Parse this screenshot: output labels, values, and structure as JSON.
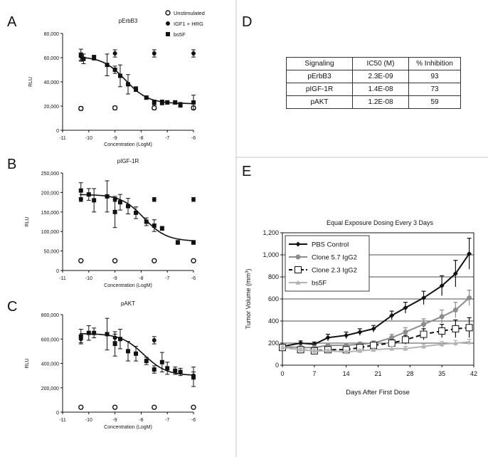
{
  "panel_labels": {
    "a": "A",
    "b": "B",
    "c": "C",
    "d": "D",
    "e": "E"
  },
  "table": {
    "headers": [
      "Signaling",
      "IC50  (M)",
      "% Inhibition"
    ],
    "rows": [
      [
        "pErbB3",
        "2.3E-09",
        "93"
      ],
      [
        "pIGF-1R",
        "1.4E-08",
        "73"
      ],
      [
        "pAKT",
        "1.2E-08",
        "59"
      ]
    ]
  },
  "chart_data": [
    {
      "id": "A",
      "type": "scatter",
      "title": "pErbB3",
      "xlabel": "Concentration (LogM)",
      "ylabel": "RLU",
      "xlim": [
        -11,
        -6
      ],
      "ylim": [
        0,
        80000
      ],
      "xticks": [
        -11,
        -10,
        -9,
        -8,
        -7,
        -6
      ],
      "yticks": [
        0,
        20000,
        40000,
        60000,
        80000
      ],
      "ytick_labels": [
        "0",
        "20,000",
        "40,000",
        "60,000",
        "80,000"
      ],
      "legend": [
        "Unstimulated",
        "IGF1 + HRG",
        "bs5F"
      ],
      "fit": {
        "top": 61000,
        "bottom": 22000,
        "logIC50": -8.6,
        "hill": 1.0
      },
      "series": [
        {
          "name": "Unstimulated",
          "marker": "open-circle",
          "x": [
            -10.3,
            -9,
            -7.5,
            -6
          ],
          "y": [
            18000,
            18500,
            18500,
            18500
          ],
          "err": [
            1500,
            1500,
            1500,
            1500
          ]
        },
        {
          "name": "IGF1 + HRG",
          "marker": "filled-circle",
          "x": [
            -10.3,
            -9,
            -7.5,
            -6
          ],
          "y": [
            61000,
            63500,
            63500,
            63500
          ],
          "err": [
            3000,
            3000,
            3000,
            3000
          ]
        },
        {
          "name": "bs5F",
          "marker": "filled-square",
          "x": [
            -10.3,
            -10.2,
            -9.8,
            -9.3,
            -9.0,
            -8.8,
            -8.5,
            -8.2,
            -7.8,
            -7.5,
            -7.2,
            -7.0,
            -6.7,
            -6.5,
            -6.0
          ],
          "y": [
            62000,
            59000,
            60000,
            54000,
            50000,
            45000,
            38000,
            34000,
            27000,
            23000,
            23000,
            23000,
            23000,
            21000,
            23000
          ],
          "err": [
            5000,
            4000,
            2000,
            9000,
            3000,
            9000,
            8000,
            2000,
            1500,
            2000,
            2000,
            1500,
            1500,
            2000,
            6000
          ]
        }
      ]
    },
    {
      "id": "B",
      "type": "scatter",
      "title": "pIGF-1R",
      "xlabel": "Concentration (LogM)",
      "ylabel": "RLU",
      "xlim": [
        -11,
        -6
      ],
      "ylim": [
        0,
        250000
      ],
      "xticks": [
        -11,
        -10,
        -9,
        -8,
        -7,
        -6
      ],
      "yticks": [
        0,
        50000,
        100000,
        150000,
        200000,
        250000
      ],
      "ytick_labels": [
        "0",
        "50,000",
        "100,000",
        "150,000",
        "200,000",
        "250,000"
      ],
      "fit": {
        "top": 195000,
        "bottom": 75000,
        "logIC50": -7.9,
        "hill": 1.0
      },
      "series": [
        {
          "name": "Unstimulated",
          "marker": "open-circle",
          "x": [
            -10.3,
            -9,
            -7.5,
            -6
          ],
          "y": [
            25000,
            25000,
            25000,
            25000
          ],
          "err": [
            0,
            0,
            0,
            0
          ]
        },
        {
          "name": "IGF1 + HRG",
          "marker": "filled-circle",
          "x": [
            -10.3,
            -9,
            -7.5,
            -6
          ],
          "y": [
            182000,
            182000,
            182000,
            182000
          ],
          "err": [
            5000,
            5000,
            5000,
            5000
          ]
        },
        {
          "name": "bs5F",
          "marker": "filled-square",
          "x": [
            -10.3,
            -10.0,
            -9.8,
            -9.3,
            -9.0,
            -8.8,
            -8.5,
            -8.2,
            -7.8,
            -7.5,
            -7.2,
            -6.6,
            -6.0
          ],
          "y": [
            205000,
            195000,
            180000,
            190000,
            150000,
            175000,
            165000,
            148000,
            125000,
            115000,
            108000,
            72000,
            72000
          ],
          "err": [
            20000,
            15000,
            30000,
            40000,
            40000,
            20000,
            20000,
            15000,
            10000,
            15000,
            5000,
            5000,
            5000
          ]
        }
      ]
    },
    {
      "id": "C",
      "type": "scatter",
      "title": "pAKT",
      "xlabel": "Concentration (LogM)",
      "ylabel": "RLU",
      "xlim": [
        -11,
        -6
      ],
      "ylim": [
        0,
        800000
      ],
      "xticks": [
        -11,
        -10,
        -9,
        -8,
        -7,
        -6
      ],
      "yticks": [
        0,
        200000,
        400000,
        600000,
        800000
      ],
      "ytick_labels": [
        "0",
        "200,000",
        "400,000",
        "600,000",
        "800,000"
      ],
      "fit": {
        "top": 645000,
        "bottom": 300000,
        "logIC50": -7.9,
        "hill": 1.0
      },
      "series": [
        {
          "name": "Unstimulated",
          "marker": "open-circle",
          "x": [
            -10.3,
            -9,
            -7.5,
            -6
          ],
          "y": [
            40000,
            40000,
            40000,
            40000
          ],
          "err": [
            0,
            0,
            0,
            0
          ]
        },
        {
          "name": "IGF1 + HRG",
          "marker": "filled-circle",
          "x": [
            -10.3,
            -9,
            -7.5,
            -6
          ],
          "y": [
            600000,
            610000,
            590000,
            300000
          ],
          "err": [
            30000,
            30000,
            30000,
            30000
          ]
        },
        {
          "name": "bs5F",
          "marker": "filled-square",
          "x": [
            -10.3,
            -10.0,
            -9.8,
            -9.3,
            -9.0,
            -8.8,
            -8.5,
            -8.2,
            -7.8,
            -7.5,
            -7.2,
            -7.0,
            -6.7,
            -6.5,
            -6.0
          ],
          "y": [
            620000,
            650000,
            650000,
            640000,
            560000,
            600000,
            500000,
            480000,
            420000,
            350000,
            410000,
            360000,
            340000,
            330000,
            290000
          ],
          "err": [
            60000,
            60000,
            40000,
            130000,
            100000,
            80000,
            80000,
            60000,
            30000,
            30000,
            80000,
            50000,
            30000,
            30000,
            80000
          ]
        }
      ]
    },
    {
      "id": "E",
      "type": "line",
      "title": "Equal Exposure Dosing Every 3 Days",
      "xlabel": "Days After First Dose",
      "ylabel": "Tumor Volume (mm³)",
      "ylabel_main": "Tumor Volume (mm",
      "ylabel_sup": "3",
      "ylabel_end": ")",
      "xlim": [
        0,
        42
      ],
      "ylim": [
        0,
        1200
      ],
      "xticks": [
        0,
        7,
        14,
        21,
        28,
        35,
        42
      ],
      "yticks": [
        0,
        200,
        400,
        600,
        800,
        1000,
        1200
      ],
      "ytick_labels": [
        "0",
        "200",
        "400",
        "600",
        "800",
        "1,000",
        "1,200"
      ],
      "legend_location": "top-left",
      "series": [
        {
          "name": "PBS Control",
          "marker": "diamond",
          "color": "#111111",
          "dash": false,
          "x": [
            0,
            4,
            7,
            10,
            14,
            17,
            20,
            24,
            27,
            31,
            35,
            38,
            41
          ],
          "y": [
            170,
            200,
            190,
            250,
            270,
            300,
            330,
            450,
            520,
            610,
            720,
            830,
            1010
          ],
          "err": [
            20,
            20,
            20,
            30,
            30,
            30,
            30,
            40,
            50,
            60,
            90,
            120,
            140
          ]
        },
        {
          "name": "Clone 5.7 IgG2",
          "marker": "circle",
          "color": "#8c8c8c",
          "dash": false,
          "x": [
            0,
            4,
            7,
            10,
            14,
            17,
            20,
            24,
            27,
            31,
            35,
            38,
            41
          ],
          "y": [
            170,
            160,
            160,
            180,
            180,
            190,
            200,
            250,
            300,
            370,
            440,
            500,
            610
          ],
          "err": [
            20,
            20,
            20,
            20,
            20,
            20,
            20,
            30,
            40,
            50,
            60,
            70,
            70
          ]
        },
        {
          "name": "Clone 2.3 IgG2",
          "marker": "open-square",
          "color": "#111111",
          "dash": true,
          "x": [
            0,
            4,
            7,
            10,
            14,
            17,
            20,
            24,
            27,
            31,
            35,
            38,
            41
          ],
          "y": [
            160,
            140,
            130,
            140,
            140,
            160,
            180,
            200,
            230,
            280,
            310,
            330,
            340
          ],
          "err": [
            20,
            20,
            20,
            20,
            20,
            20,
            20,
            30,
            40,
            50,
            60,
            80,
            90
          ]
        },
        {
          "name": "bs5F",
          "marker": "triangle",
          "color": "#b4b4b4",
          "dash": false,
          "x": [
            0,
            4,
            7,
            10,
            14,
            17,
            20,
            24,
            27,
            31,
            35,
            38,
            41
          ],
          "y": [
            160,
            140,
            130,
            130,
            120,
            130,
            140,
            150,
            150,
            170,
            190,
            200,
            210
          ],
          "err": [
            15,
            15,
            15,
            15,
            15,
            15,
            15,
            20,
            20,
            20,
            25,
            25,
            25
          ]
        }
      ]
    }
  ]
}
